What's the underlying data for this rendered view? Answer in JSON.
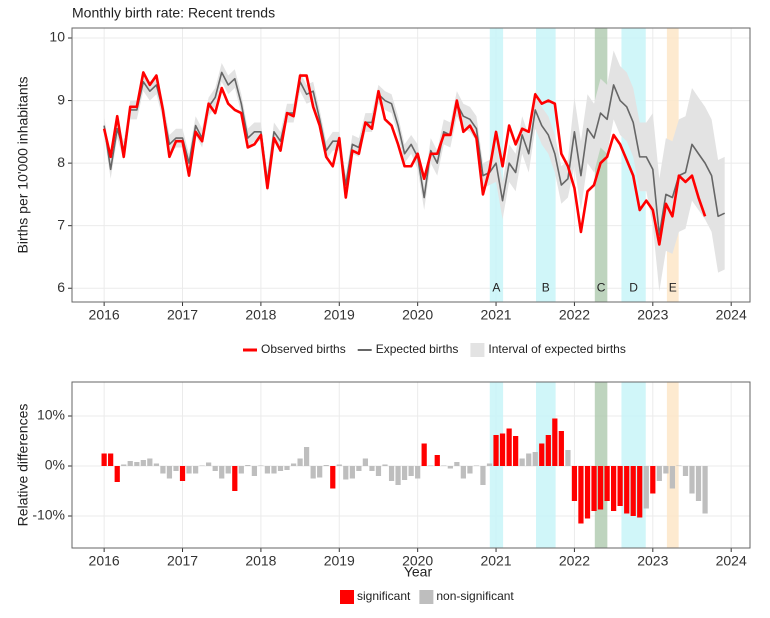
{
  "chart_data": [
    {
      "type": "line",
      "title": "Monthly birth rate: Recent trends",
      "ylabel": "Births per 10'000 inhabitants",
      "x": [
        2016,
        2016.083,
        2016.167,
        2016.25,
        2016.333,
        2016.417,
        2016.5,
        2016.583,
        2016.667,
        2016.75,
        2016.833,
        2016.917,
        2017,
        2017.083,
        2017.167,
        2017.25,
        2017.333,
        2017.417,
        2017.5,
        2017.583,
        2017.667,
        2017.75,
        2017.833,
        2017.917,
        2018,
        2018.083,
        2018.167,
        2018.25,
        2018.333,
        2018.417,
        2018.5,
        2018.583,
        2018.667,
        2018.75,
        2018.833,
        2018.917,
        2019,
        2019.083,
        2019.167,
        2019.25,
        2019.333,
        2019.417,
        2019.5,
        2019.583,
        2019.667,
        2019.75,
        2019.833,
        2019.917,
        2020,
        2020.083,
        2020.167,
        2020.25,
        2020.333,
        2020.417,
        2020.5,
        2020.583,
        2020.667,
        2020.75,
        2020.833,
        2020.917,
        2021,
        2021.083,
        2021.167,
        2021.25,
        2021.333,
        2021.417,
        2021.5,
        2021.583,
        2021.667,
        2021.75,
        2021.833,
        2021.917,
        2022,
        2022.083,
        2022.167,
        2022.25,
        2022.333,
        2022.417,
        2022.5,
        2022.583,
        2022.667,
        2022.75,
        2022.833,
        2022.917,
        2023,
        2023.083,
        2023.167,
        2023.25,
        2023.333,
        2023.417,
        2023.5,
        2023.583,
        2023.667,
        2023.75,
        2023.833,
        2023.917
      ],
      "series": [
        {
          "name": "Observed births",
          "color": "#ff0000",
          "values": [
            8.55,
            8.1,
            8.75,
            8.1,
            8.9,
            8.9,
            9.45,
            9.25,
            9.4,
            8.85,
            8.1,
            8.35,
            8.35,
            7.8,
            8.5,
            8.35,
            8.95,
            8.8,
            9.2,
            8.95,
            8.85,
            8.8,
            8.25,
            8.3,
            8.45,
            7.6,
            8.4,
            8.2,
            8.8,
            8.75,
            9.4,
            9.4,
            8.9,
            8.6,
            8.1,
            7.95,
            8.4,
            7.45,
            8.2,
            8.15,
            8.65,
            8.55,
            9.15,
            8.7,
            8.6,
            8.3,
            7.95,
            7.95,
            8.15,
            7.75,
            8.15,
            8.15,
            8.45,
            8.45,
            9.0,
            8.5,
            8.6,
            8.4,
            7.5,
            7.9,
            8.5,
            7.95,
            8.6,
            8.3,
            8.55,
            8.5,
            9.1,
            8.95,
            9.0,
            8.95,
            8.15,
            7.95,
            7.6,
            6.9,
            7.55,
            7.65,
            8.0,
            8.1,
            8.45,
            8.3,
            8.05,
            7.8,
            7.25,
            7.4,
            7.25,
            6.7,
            7.35,
            7.15,
            7.8,
            7.7,
            7.8,
            7.45,
            7.15,
            null,
            null,
            null
          ]
        },
        {
          "name": "Expected births",
          "color": "#666666",
          "values": [
            8.6,
            7.9,
            8.55,
            8.2,
            8.85,
            8.85,
            9.3,
            9.15,
            9.25,
            8.85,
            8.3,
            8.4,
            8.4,
            8.0,
            8.6,
            8.4,
            8.9,
            9.05,
            9.45,
            9.25,
            9.35,
            8.95,
            8.4,
            8.5,
            8.5,
            7.7,
            8.5,
            8.35,
            8.8,
            8.8,
            9.3,
            9.1,
            9.15,
            8.7,
            8.2,
            8.35,
            8.35,
            7.65,
            8.3,
            8.25,
            8.65,
            8.65,
            9.1,
            9.0,
            8.95,
            8.6,
            8.15,
            8.3,
            8.1,
            7.45,
            8.2,
            8.0,
            8.5,
            8.45,
            8.95,
            8.75,
            8.7,
            8.55,
            7.8,
            7.85,
            8.0,
            7.4,
            8.0,
            7.85,
            8.45,
            8.15,
            8.85,
            8.6,
            8.45,
            8.15,
            7.65,
            7.75,
            8.5,
            7.8,
            8.55,
            8.4,
            8.8,
            8.7,
            9.25,
            9.0,
            8.9,
            8.65,
            8.1,
            8.1,
            7.9,
            6.85,
            7.5,
            7.45,
            7.8,
            7.85,
            8.3,
            8.15,
            8.0,
            7.8,
            7.15,
            7.2
          ]
        }
      ],
      "band": {
        "name": "Interval of expected births",
        "color": "#e3e3e3",
        "lower": [
          8.45,
          7.75,
          8.4,
          8.05,
          8.7,
          8.7,
          9.15,
          9.0,
          9.1,
          8.7,
          8.15,
          8.25,
          8.25,
          7.85,
          8.45,
          8.25,
          8.75,
          8.9,
          9.3,
          9.1,
          9.2,
          8.8,
          8.25,
          8.35,
          8.35,
          7.55,
          8.35,
          8.2,
          8.65,
          8.65,
          9.15,
          8.95,
          9.0,
          8.55,
          8.05,
          8.2,
          8.2,
          7.5,
          8.15,
          8.1,
          8.5,
          8.5,
          8.95,
          8.85,
          8.8,
          8.45,
          8.0,
          8.15,
          7.9,
          7.25,
          8.0,
          7.8,
          8.3,
          8.25,
          8.75,
          8.55,
          8.5,
          8.35,
          7.6,
          7.65,
          7.7,
          7.1,
          7.7,
          7.55,
          8.15,
          7.85,
          8.55,
          8.3,
          8.15,
          7.85,
          7.35,
          7.45,
          7.95,
          7.25,
          8.0,
          7.85,
          8.25,
          8.15,
          8.7,
          8.45,
          8.35,
          8.1,
          7.55,
          7.55,
          7.0,
          5.95,
          6.6,
          6.55,
          6.9,
          6.95,
          7.4,
          7.25,
          7.1,
          6.9,
          6.25,
          6.3
        ],
        "upper": [
          8.75,
          8.05,
          8.7,
          8.35,
          9.0,
          9.0,
          9.45,
          9.3,
          9.4,
          9.0,
          8.45,
          8.55,
          8.55,
          8.15,
          8.75,
          8.55,
          9.05,
          9.2,
          9.6,
          9.4,
          9.5,
          9.1,
          8.55,
          8.65,
          8.65,
          7.85,
          8.65,
          8.5,
          8.95,
          8.95,
          9.45,
          9.25,
          9.3,
          8.85,
          8.35,
          8.5,
          8.5,
          7.8,
          8.45,
          8.4,
          8.8,
          8.8,
          9.25,
          9.15,
          9.1,
          8.75,
          8.3,
          8.45,
          8.3,
          7.65,
          8.4,
          8.2,
          8.7,
          8.65,
          9.15,
          8.95,
          8.9,
          8.75,
          8.0,
          8.05,
          8.3,
          7.7,
          8.3,
          8.15,
          8.75,
          8.45,
          9.15,
          8.9,
          8.75,
          8.45,
          7.95,
          8.05,
          9.05,
          8.35,
          9.1,
          8.95,
          9.35,
          9.25,
          9.8,
          9.55,
          9.45,
          9.2,
          8.65,
          8.65,
          8.8,
          7.75,
          8.4,
          8.35,
          8.7,
          8.75,
          9.2,
          9.05,
          8.9,
          8.7,
          8.05,
          8.1
        ]
      },
      "periods": [
        {
          "label": "A",
          "start": 2020.92,
          "end": 2021.09,
          "color": "#c8f4f8"
        },
        {
          "label": "B",
          "start": 2021.51,
          "end": 2021.76,
          "color": "#c8f4f8"
        },
        {
          "label": "C",
          "start": 2022.26,
          "end": 2022.42,
          "color": "#b3cdb3"
        },
        {
          "label": "D",
          "start": 2022.6,
          "end": 2022.91,
          "color": "#c8f4f8"
        },
        {
          "label": "E",
          "start": 2023.18,
          "end": 2023.33,
          "color": "#fde6c8"
        }
      ],
      "xlim": [
        2015.59,
        2024.24
      ],
      "xticks": [
        2016,
        2017,
        2018,
        2019,
        2020,
        2021,
        2022,
        2023,
        2024
      ],
      "ylim": [
        5.78,
        10.16
      ],
      "yticks": [
        6,
        7,
        8,
        9,
        10
      ],
      "grid": true
    },
    {
      "type": "bar",
      "ylabel": "Relative differences",
      "xlabel": "Year",
      "x": [
        2016,
        2016.083,
        2016.167,
        2016.25,
        2016.333,
        2016.417,
        2016.5,
        2016.583,
        2016.667,
        2016.75,
        2016.833,
        2016.917,
        2017,
        2017.083,
        2017.167,
        2017.25,
        2017.333,
        2017.417,
        2017.5,
        2017.583,
        2017.667,
        2017.75,
        2017.833,
        2017.917,
        2018,
        2018.083,
        2018.167,
        2018.25,
        2018.333,
        2018.417,
        2018.5,
        2018.583,
        2018.667,
        2018.75,
        2018.833,
        2018.917,
        2019,
        2019.083,
        2019.167,
        2019.25,
        2019.333,
        2019.417,
        2019.5,
        2019.583,
        2019.667,
        2019.75,
        2019.833,
        2019.917,
        2020,
        2020.083,
        2020.167,
        2020.25,
        2020.333,
        2020.417,
        2020.5,
        2020.583,
        2020.667,
        2020.75,
        2020.833,
        2020.917,
        2021,
        2021.083,
        2021.167,
        2021.25,
        2021.333,
        2021.417,
        2021.5,
        2021.583,
        2021.667,
        2021.75,
        2021.833,
        2021.917,
        2022,
        2022.083,
        2022.167,
        2022.25,
        2022.333,
        2022.417,
        2022.5,
        2022.583,
        2022.667,
        2022.75,
        2022.833,
        2022.917,
        2023,
        2023.083,
        2023.167,
        2023.25,
        2023.333,
        2023.417,
        2023.5,
        2023.583,
        2023.667
      ],
      "series": [
        {
          "name": "significant",
          "color": "#ff0000",
          "values": [
            2.5,
            2.5,
            -3.2,
            null,
            null,
            null,
            null,
            null,
            null,
            null,
            null,
            null,
            -3,
            null,
            null,
            null,
            null,
            null,
            null,
            null,
            -5,
            null,
            null,
            null,
            null,
            null,
            null,
            null,
            null,
            null,
            null,
            null,
            null,
            null,
            null,
            -4.5,
            null,
            null,
            null,
            null,
            null,
            null,
            null,
            null,
            null,
            null,
            null,
            null,
            null,
            4.5,
            null,
            2.2,
            null,
            null,
            null,
            null,
            null,
            null,
            null,
            null,
            6.2,
            6.5,
            7.5,
            6,
            null,
            null,
            null,
            4.5,
            6.2,
            9.5,
            7,
            null,
            -7,
            -11.5,
            -10.5,
            -9,
            -8.7,
            -7,
            -9,
            -8,
            -9.5,
            -10,
            -10.3,
            null,
            -5.5,
            null,
            null,
            null,
            null,
            null,
            null,
            null,
            null
          ]
        },
        {
          "name": "non-significant",
          "color": "#bebebe",
          "values": [
            null,
            null,
            null,
            0.3,
            1,
            0.8,
            1.2,
            1.5,
            0.5,
            -1.5,
            -2.5,
            -1,
            null,
            -1.5,
            -1.5,
            0.1,
            0.7,
            -1,
            -2.5,
            -1.5,
            null,
            -1.5,
            0.2,
            -2,
            0.1,
            -1.5,
            -1.5,
            -1,
            -0.8,
            0.5,
            1.5,
            3.8,
            -2.5,
            -2.3,
            0.2,
            null,
            0.3,
            -2.7,
            -2.5,
            -1,
            1.5,
            -1,
            -2,
            0.3,
            -3,
            -3.8,
            -2.8,
            -2,
            -2.5,
            null,
            0.1,
            null,
            0.1,
            -0.5,
            0.8,
            -2.5,
            -1.5,
            0.1,
            -3.8,
            0.5,
            null,
            null,
            null,
            null,
            1.5,
            2.5,
            2.8,
            null,
            null,
            null,
            null,
            3.2,
            null,
            null,
            null,
            null,
            null,
            null,
            null,
            null,
            null,
            null,
            null,
            -8.5,
            null,
            -3,
            -1.5,
            -4.5,
            0.1,
            -2,
            -5.5,
            -7,
            -9.5
          ]
        }
      ],
      "xlim": [
        2015.59,
        2024.24
      ],
      "xticks": [
        2016,
        2017,
        2018,
        2019,
        2020,
        2021,
        2022,
        2023,
        2024
      ],
      "ylim": [
        -16.4,
        16.8
      ],
      "yticks": [
        {
          "value": -10,
          "label": "-10%"
        },
        {
          "value": 0,
          "label": "0%"
        },
        {
          "value": 10,
          "label": "10%"
        }
      ],
      "grid": true
    }
  ]
}
